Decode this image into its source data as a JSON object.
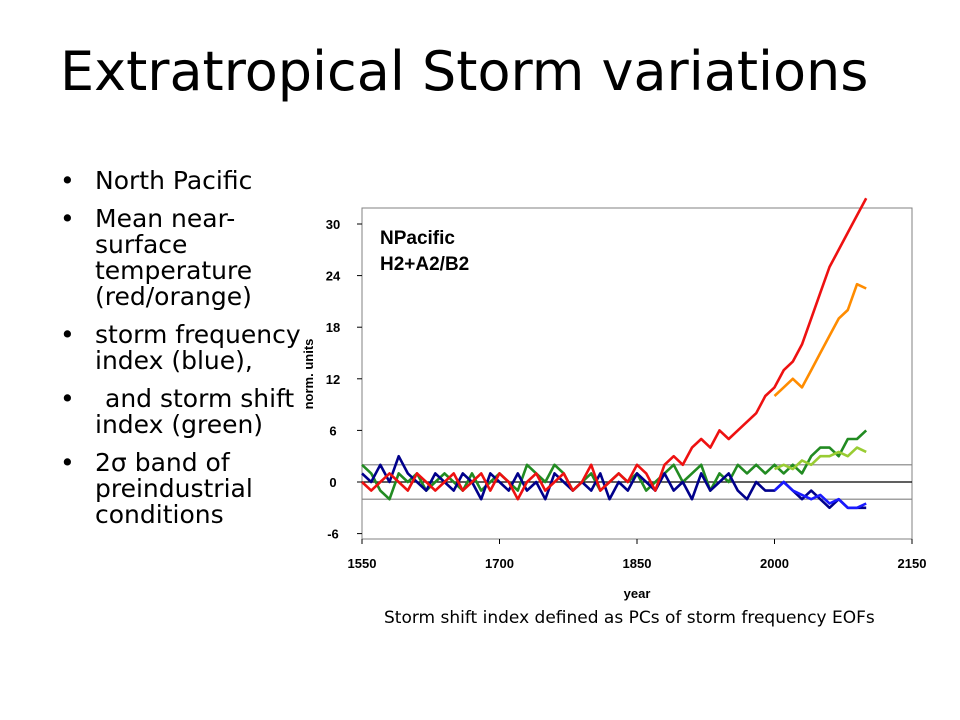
{
  "slide": {
    "title": "Extratropical Storm variations",
    "bullets": [
      "North Pacific",
      "Mean near-surface temperature (red/orange)",
      "storm frequency index (blue),",
      "and storm shift index (green)",
      "2σ band of preindustrial conditions"
    ],
    "caption": "Storm shift index defined as PCs of  storm frequency EOFs"
  },
  "chart_data": {
    "type": "line",
    "xlabel": "year",
    "ylabel": "norm. units",
    "xlim": [
      1550,
      2150
    ],
    "ylim": [
      -6,
      33
    ],
    "xticks": [
      "1550",
      "1700",
      "1850",
      "2000",
      "2150"
    ],
    "yticks": [
      "30",
      "24",
      "18",
      "12",
      "6",
      "0",
      "-6"
    ],
    "annotation": [
      "NPacific",
      "H2+A2/B2"
    ],
    "grid": false,
    "reference_lines": [
      {
        "name": "upper band",
        "y": 2.0,
        "color": "#808080"
      },
      {
        "name": "zero",
        "y": 0,
        "color": "#000000"
      },
      {
        "name": "lower band",
        "y": -2.0,
        "color": "#808080"
      }
    ],
    "series": [
      {
        "color": "#228b22",
        "x": [
          1550,
          1560,
          1570,
          1580,
          1590,
          1600,
          1610,
          1620,
          1630,
          1640,
          1650,
          1660,
          1670,
          1680,
          1690,
          1700,
          1710,
          1720,
          1730,
          1740,
          1750,
          1760,
          1770,
          1780,
          1790,
          1800,
          1810,
          1820,
          1830,
          1840,
          1850,
          1860,
          1870,
          1880,
          1890,
          1900,
          1910,
          1920,
          1930,
          1940,
          1950,
          1960,
          1970,
          1980,
          1990,
          2000,
          2010,
          2020,
          2030,
          2040,
          2050,
          2060,
          2070,
          2080,
          2090,
          2100
        ],
        "y": [
          2,
          1,
          -1,
          -2,
          1,
          0,
          1,
          -1,
          0,
          1,
          0,
          -1,
          1,
          -1,
          0,
          1,
          0,
          -1,
          2,
          1,
          0,
          2,
          1,
          -1,
          0,
          1,
          -1,
          0,
          1,
          0,
          1,
          -1,
          0,
          1,
          2,
          0,
          1,
          2,
          -1,
          1,
          0,
          2,
          1,
          2,
          1,
          2,
          1,
          2,
          1,
          3,
          4,
          4,
          3,
          5,
          5,
          6
        ]
      },
      {
        "color": "#99cc33",
        "x": [
          2000,
          2010,
          2020,
          2030,
          2040,
          2050,
          2060,
          2070,
          2080,
          2090,
          2100
        ],
        "y": [
          1.5,
          2,
          1.5,
          2.5,
          2,
          3,
          3,
          3.5,
          3,
          4,
          3.5
        ]
      },
      {
        "color": "#00008b",
        "x": [
          1550,
          1560,
          1570,
          1580,
          1590,
          1600,
          1610,
          1620,
          1630,
          1640,
          1650,
          1660,
          1670,
          1680,
          1690,
          1700,
          1710,
          1720,
          1730,
          1740,
          1750,
          1760,
          1770,
          1780,
          1790,
          1800,
          1810,
          1820,
          1830,
          1840,
          1850,
          1860,
          1870,
          1880,
          1890,
          1900,
          1910,
          1920,
          1930,
          1940,
          1950,
          1960,
          1970,
          1980,
          1990,
          2000,
          2010,
          2020,
          2030,
          2040,
          2050,
          2060,
          2070,
          2080,
          2090,
          2100
        ],
        "y": [
          1,
          0,
          2,
          0,
          3,
          1,
          0,
          -1,
          1,
          0,
          -1,
          1,
          0,
          -2,
          1,
          0,
          -1,
          1,
          -1,
          0,
          -2,
          1,
          0,
          -1,
          0,
          -1,
          1,
          -2,
          0,
          -1,
          1,
          0,
          -1,
          1,
          -1,
          0,
          -2,
          1,
          -1,
          0,
          1,
          -1,
          -2,
          0,
          -1,
          -1,
          0,
          -1,
          -2,
          -1,
          -2,
          -3,
          -2,
          -3,
          -3,
          -3
        ]
      },
      {
        "color": "#1a1aff",
        "x": [
          2000,
          2010,
          2020,
          2030,
          2040,
          2050,
          2060,
          2070,
          2080,
          2090,
          2100
        ],
        "y": [
          -1,
          0,
          -1,
          -1.5,
          -2,
          -1.5,
          -2.5,
          -2,
          -3,
          -3,
          -2.5
        ]
      },
      {
        "color": "#ff8c00",
        "x": [
          2000,
          2010,
          2020,
          2030,
          2040,
          2050,
          2060,
          2070,
          2080,
          2090,
          2100
        ],
        "y": [
          10,
          11,
          12,
          11,
          13,
          15,
          17,
          19,
          20,
          23,
          22.5
        ]
      },
      {
        "color": "#ee1111",
        "x": [
          1550,
          1560,
          1570,
          1580,
          1590,
          1600,
          1610,
          1620,
          1630,
          1640,
          1650,
          1660,
          1670,
          1680,
          1690,
          1700,
          1710,
          1720,
          1730,
          1740,
          1750,
          1760,
          1770,
          1780,
          1790,
          1800,
          1810,
          1820,
          1830,
          1840,
          1850,
          1860,
          1870,
          1880,
          1890,
          1900,
          1910,
          1920,
          1930,
          1940,
          1950,
          1960,
          1970,
          1980,
          1990,
          2000,
          2010,
          2020,
          2030,
          2040,
          2050,
          2060,
          2070,
          2080,
          2090,
          2100
        ],
        "y": [
          0,
          -1,
          0,
          1,
          0,
          -1,
          1,
          0,
          -1,
          0,
          1,
          -1,
          0,
          1,
          -1,
          1,
          0,
          -2,
          0,
          1,
          -1,
          0,
          1,
          -1,
          0,
          2,
          -1,
          0,
          1,
          0,
          2,
          1,
          -1,
          2,
          3,
          2,
          4,
          5,
          4,
          6,
          5,
          6,
          7,
          8,
          10,
          11,
          13,
          14,
          16,
          19,
          22,
          25,
          27,
          29,
          31,
          33
        ]
      }
    ]
  }
}
